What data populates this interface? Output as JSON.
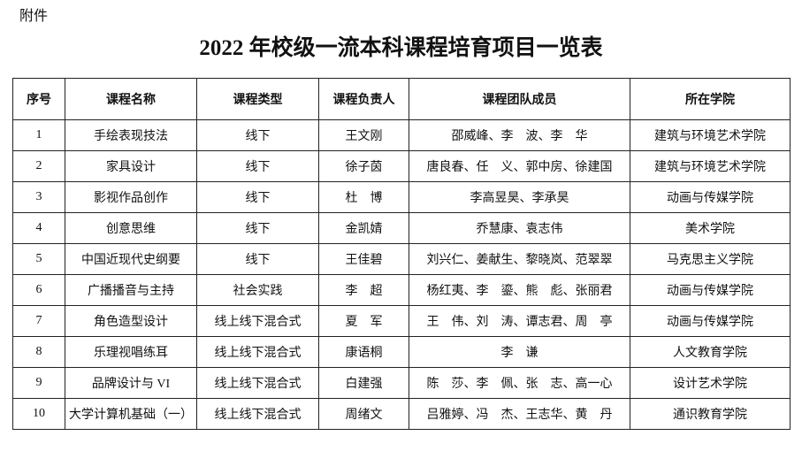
{
  "header": {
    "attachment": "附件",
    "title": "2022 年校级一流本科课程培育项目一览表"
  },
  "table": {
    "columns": [
      "序号",
      "课程名称",
      "课程类型",
      "课程负责人",
      "课程团队成员",
      "所在学院"
    ],
    "rows": [
      [
        1,
        "手绘表现技法",
        "线下",
        "王文刚",
        "邵威峰、李　波、李　华",
        "建筑与环境艺术学院"
      ],
      [
        2,
        "家具设计",
        "线下",
        "徐子茵",
        "唐良春、任　义、郭中房、徐建国",
        "建筑与环境艺术学院"
      ],
      [
        3,
        "影视作品创作",
        "线下",
        "杜　博",
        "李高昱昊、李承昊",
        "动画与传媒学院"
      ],
      [
        4,
        "创意思维",
        "线下",
        "金凯婧",
        "乔慧康、袁志伟",
        "美术学院"
      ],
      [
        5,
        "中国近现代史纲要",
        "线下",
        "王佳碧",
        "刘兴仁、姜献生、黎晓岚、范翠翠",
        "马克思主义学院"
      ],
      [
        6,
        "广播播音与主持",
        "社会实践",
        "李　超",
        "杨红夷、李　鎏、熊　彪、张丽君",
        "动画与传媒学院"
      ],
      [
        7,
        "角色造型设计",
        "线上线下混合式",
        "夏　军",
        "王　伟、刘　涛、谭志君、周　亭",
        "动画与传媒学院"
      ],
      [
        8,
        "乐理视唱练耳",
        "线上线下混合式",
        "康语桐",
        "李　谦",
        "人文教育学院"
      ],
      [
        9,
        "品牌设计与 VI",
        "线上线下混合式",
        "白建强",
        "陈　莎、李　佩、张　志、高一心",
        "设计艺术学院"
      ],
      [
        10,
        "大学计算机基础（一）",
        "线上线下混合式",
        "周绪文",
        "吕雅婷、冯　杰、王志华、黄　丹",
        "通识教育学院"
      ]
    ]
  }
}
